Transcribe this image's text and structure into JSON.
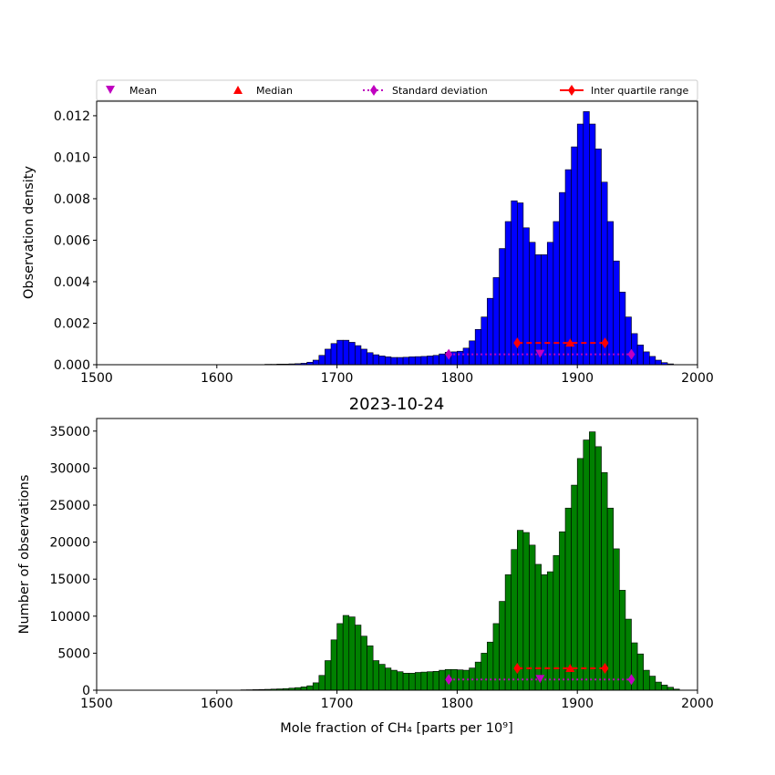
{
  "legend": {
    "mean": "Mean",
    "median": "Median",
    "std": "Standard deviation",
    "iqr": "Inter quartile range"
  },
  "colors": {
    "density_bars": "#0000ff",
    "count_bars": "#008000",
    "stat_mean_std": "#c000c0",
    "stat_median_iqr": "#ff0000"
  },
  "chart_data": [
    {
      "type": "bar",
      "title": "",
      "xlabel": "",
      "ylabel": "Observation density",
      "xlim": [
        1500,
        2000
      ],
      "ylim": [
        0,
        0.0127
      ],
      "xticks": [
        "1500",
        "1600",
        "1700",
        "1800",
        "1900",
        "2000"
      ],
      "yticks": [
        "0.000",
        "0.002",
        "0.004",
        "0.006",
        "0.008",
        "0.010",
        "0.012"
      ],
      "bin_start": 1640,
      "bin_width": 5,
      "values": [
        2e-05,
        2e-05,
        3e-05,
        3e-05,
        4e-05,
        5e-05,
        7e-05,
        0.00012,
        0.00022,
        0.00045,
        0.00075,
        0.00102,
        0.00118,
        0.00118,
        0.00108,
        0.00092,
        0.00075,
        0.00058,
        0.00048,
        0.00042,
        0.00038,
        0.00035,
        0.00035,
        0.00036,
        0.00038,
        0.00039,
        0.0004,
        0.00042,
        0.00045,
        0.00052,
        0.0006,
        0.00062,
        0.00065,
        0.0008,
        0.00115,
        0.0017,
        0.0023,
        0.0032,
        0.0042,
        0.0056,
        0.0069,
        0.0079,
        0.0078,
        0.0066,
        0.0059,
        0.0053,
        0.0053,
        0.0059,
        0.0069,
        0.0083,
        0.0094,
        0.0105,
        0.0116,
        0.0122,
        0.0116,
        0.0104,
        0.0088,
        0.0069,
        0.005,
        0.0035,
        0.0023,
        0.0015,
        0.00095,
        0.00062,
        0.0004,
        0.00022,
        0.0001,
        4e-05
      ],
      "stats": {
        "mean": 1869,
        "median": 1894,
        "q1": 1850,
        "q3": 1923,
        "std_low": 1793,
        "std_high": 1945,
        "marker_y_mean_std": 0.0005,
        "marker_y_median_iqr": 0.00105
      }
    },
    {
      "type": "bar",
      "title": "2023-10-24",
      "xlabel": "Mole fraction of CH₄ [parts per 10⁹]",
      "ylabel": "Number of observations",
      "xlim": [
        1500,
        2000
      ],
      "ylim": [
        0,
        36700
      ],
      "xticks": [
        "1500",
        "1600",
        "1700",
        "1800",
        "1900",
        "2000"
      ],
      "yticks": [
        "0",
        "5000",
        "10000",
        "15000",
        "20000",
        "25000",
        "30000",
        "35000"
      ],
      "bin_start": 1620,
      "bin_width": 5,
      "values": [
        50,
        60,
        80,
        100,
        120,
        150,
        180,
        220,
        280,
        350,
        450,
        600,
        1000,
        2000,
        4000,
        6800,
        9000,
        10100,
        9900,
        8800,
        7300,
        6000,
        4000,
        3500,
        3000,
        2700,
        2500,
        2300,
        2300,
        2400,
        2450,
        2500,
        2550,
        2700,
        2800,
        2800,
        2750,
        2700,
        3000,
        3800,
        5000,
        6500,
        9000,
        12000,
        15600,
        19000,
        21600,
        21300,
        19600,
        17000,
        15600,
        16000,
        18200,
        21400,
        24600,
        27700,
        31300,
        33800,
        34900,
        32900,
        29400,
        24600,
        19100,
        13500,
        9600,
        6400,
        4900,
        2700,
        1900,
        1100,
        700,
        400,
        150
      ],
      "stats": {
        "mean": 1869,
        "median": 1894,
        "q1": 1850,
        "q3": 1923,
        "std_low": 1793,
        "std_high": 1945,
        "marker_y_mean_std": 1450,
        "marker_y_median_iqr": 2950
      }
    }
  ]
}
